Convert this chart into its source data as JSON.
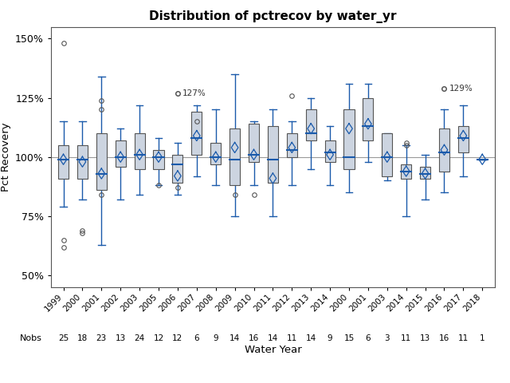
{
  "title": "Distribution of pctrecov by water_yr",
  "xlabel": "Water Year",
  "ylabel": "Pct Recovery",
  "ylim": [
    45,
    155
  ],
  "yticks": [
    50,
    75,
    100,
    125,
    150
  ],
  "ytick_labels": [
    "50%",
    "75%",
    "100%",
    "125%",
    "150%"
  ],
  "years": [
    "1999",
    "2000",
    "2001",
    "2002",
    "2003",
    "2005",
    "2006",
    "2007",
    "2008",
    "2009",
    "2010",
    "2011",
    "2012",
    "2013",
    "2014",
    "2000",
    "2001",
    "2003",
    "2014",
    "2015",
    "2016",
    "2017",
    "2018"
  ],
  "nobs": [
    25,
    18,
    23,
    13,
    24,
    12,
    12,
    6,
    9,
    14,
    16,
    14,
    11,
    14,
    9,
    15,
    6,
    3,
    11,
    13,
    16,
    11,
    1
  ],
  "boxes": [
    {
      "q1": 91,
      "med": 99,
      "q3": 105,
      "mean": 99,
      "whislo": 79,
      "whishi": 115,
      "fliers": [
        148,
        65,
        62
      ]
    },
    {
      "q1": 91,
      "med": 99,
      "q3": 105,
      "mean": 98,
      "whislo": 82,
      "whishi": 115,
      "fliers": [
        69,
        68
      ]
    },
    {
      "q1": 86,
      "med": 93,
      "q3": 110,
      "mean": 93,
      "whislo": 63,
      "whishi": 134,
      "fliers": [
        124,
        120,
        84
      ]
    },
    {
      "q1": 96,
      "med": 100,
      "q3": 107,
      "mean": 100,
      "whislo": 82,
      "whishi": 112,
      "fliers": []
    },
    {
      "q1": 95,
      "med": 101,
      "q3": 110,
      "mean": 101,
      "whislo": 84,
      "whishi": 122,
      "fliers": []
    },
    {
      "q1": 95,
      "med": 100,
      "q3": 103,
      "mean": 100,
      "whislo": 88,
      "whishi": 108,
      "fliers": [
        88
      ]
    },
    {
      "q1": 89,
      "med": 97,
      "q3": 101,
      "mean": 92,
      "whislo": 84,
      "whishi": 106,
      "fliers": [
        127,
        87
      ]
    },
    {
      "q1": 101,
      "med": 108,
      "q3": 119,
      "mean": 109,
      "whislo": 92,
      "whishi": 122,
      "fliers": [
        115
      ]
    },
    {
      "q1": 97,
      "med": 100,
      "q3": 106,
      "mean": 100,
      "whislo": 88,
      "whishi": 120,
      "fliers": []
    },
    {
      "q1": 88,
      "med": 99,
      "q3": 112,
      "mean": 104,
      "whislo": 75,
      "whishi": 135,
      "fliers": [
        84
      ]
    },
    {
      "q1": 98,
      "med": 101,
      "q3": 114,
      "mean": 101,
      "whislo": 88,
      "whishi": 115,
      "fliers": [
        84
      ]
    },
    {
      "q1": 89,
      "med": 99,
      "q3": 113,
      "mean": 91,
      "whislo": 75,
      "whishi": 120,
      "fliers": []
    },
    {
      "q1": 100,
      "med": 103,
      "q3": 110,
      "mean": 104,
      "whislo": 88,
      "whishi": 115,
      "fliers": [
        126
      ]
    },
    {
      "q1": 107,
      "med": 110,
      "q3": 120,
      "mean": 112,
      "whislo": 95,
      "whishi": 125,
      "fliers": []
    },
    {
      "q1": 98,
      "med": 102,
      "q3": 107,
      "mean": 101,
      "whislo": 88,
      "whishi": 113,
      "fliers": []
    },
    {
      "q1": 95,
      "med": 100,
      "q3": 120,
      "mean": 112,
      "whislo": 85,
      "whishi": 131,
      "fliers": []
    },
    {
      "q1": 107,
      "med": 113,
      "q3": 125,
      "mean": 114,
      "whislo": 98,
      "whishi": 131,
      "fliers": []
    },
    {
      "q1": 92,
      "med": 100,
      "q3": 110,
      "mean": 100,
      "whislo": 90,
      "whishi": 110,
      "fliers": []
    },
    {
      "q1": 91,
      "med": 94,
      "q3": 97,
      "mean": 94,
      "whislo": 75,
      "whishi": 105,
      "fliers": [
        106,
        105
      ]
    },
    {
      "q1": 91,
      "med": 93,
      "q3": 96,
      "mean": 93,
      "whislo": 82,
      "whishi": 101,
      "fliers": []
    },
    {
      "q1": 94,
      "med": 102,
      "q3": 112,
      "mean": 103,
      "whislo": 85,
      "whishi": 120,
      "fliers": [
        129
      ]
    },
    {
      "q1": 102,
      "med": 108,
      "q3": 113,
      "mean": 109,
      "whislo": 92,
      "whishi": 122,
      "fliers": []
    },
    {
      "q1": 99,
      "med": 99,
      "q3": 99,
      "mean": 99,
      "whislo": 99,
      "whishi": 99,
      "fliers": []
    }
  ],
  "annotations": [
    {
      "xi": 6,
      "y": 127,
      "text": "127%"
    },
    {
      "xi": 20,
      "y": 129,
      "text": "129%"
    }
  ],
  "box_facecolor": "#ccd4e0",
  "box_edgecolor": "#555555",
  "whisker_color": "#1a5aab",
  "median_color": "#1a5aab",
  "mean_color": "#1a5aab",
  "flier_color": "#555555",
  "ref_line_y": 100,
  "ref_line_color": "#999999",
  "background_color": "#ffffff"
}
